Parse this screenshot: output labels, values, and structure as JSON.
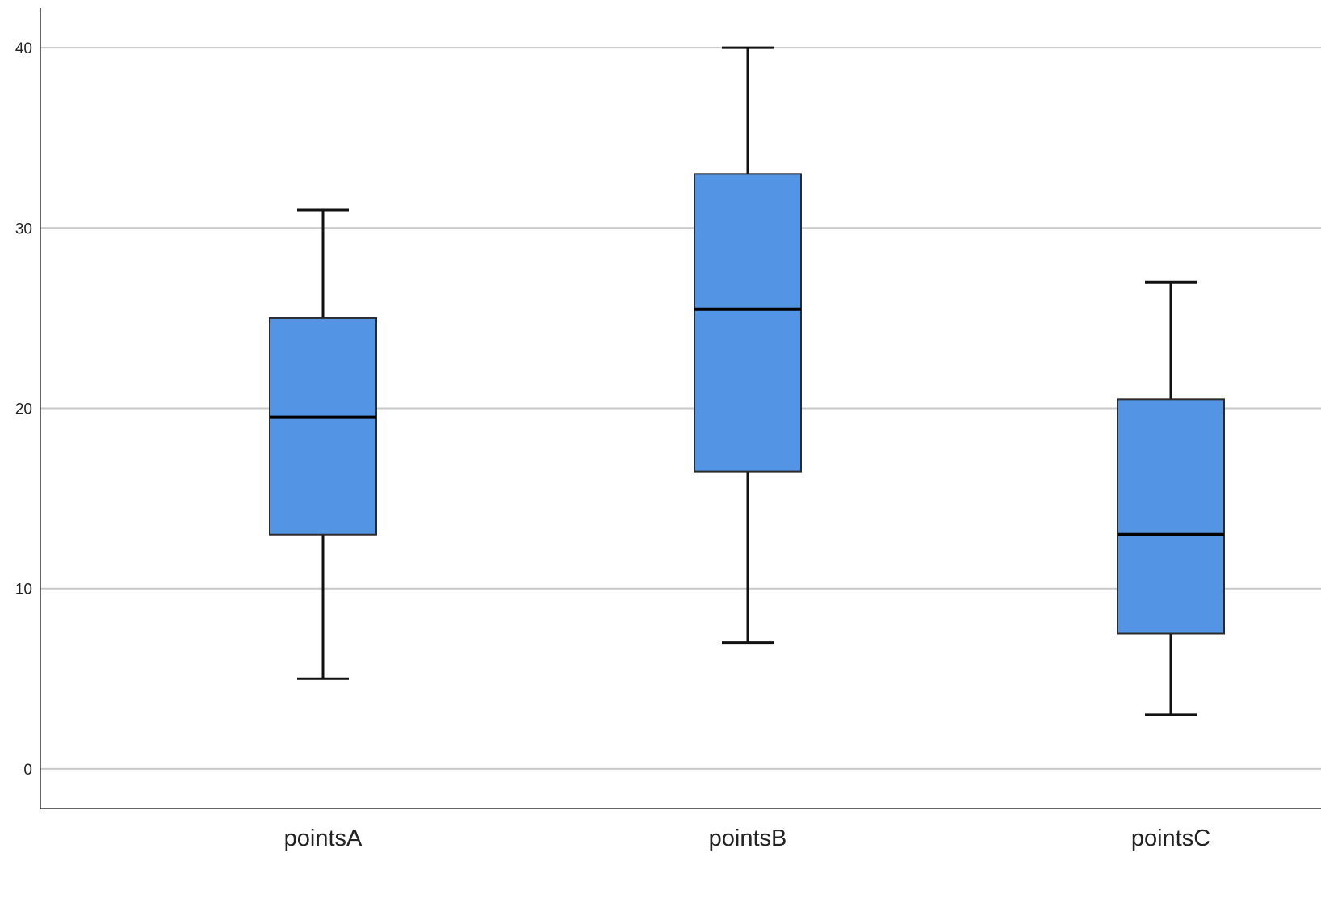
{
  "chart_data": {
    "type": "boxplot",
    "title": "",
    "xlabel": "",
    "ylabel": "",
    "ylim": [
      -2.2,
      42.2
    ],
    "yticks": [
      0,
      10,
      20,
      30,
      40
    ],
    "grid": true,
    "legend": "none",
    "categories": [
      "pointsA",
      "pointsB",
      "pointsC"
    ],
    "boxes": [
      {
        "category": "pointsA",
        "min": 5,
        "q1": 13,
        "median": 19.5,
        "q3": 25,
        "max": 31
      },
      {
        "category": "pointsB",
        "min": 7,
        "q1": 16.5,
        "median": 25.5,
        "q3": 33,
        "max": 40
      },
      {
        "category": "pointsC",
        "min": 3,
        "q1": 7.5,
        "median": 13,
        "q3": 20.5,
        "max": 27
      }
    ]
  },
  "colors": {
    "box_fill": "#5494e4",
    "box_stroke": "#2b2b2b",
    "whisker": "#111111",
    "median": "#000000",
    "grid": "#c8c8c8",
    "axis": "#333333"
  }
}
